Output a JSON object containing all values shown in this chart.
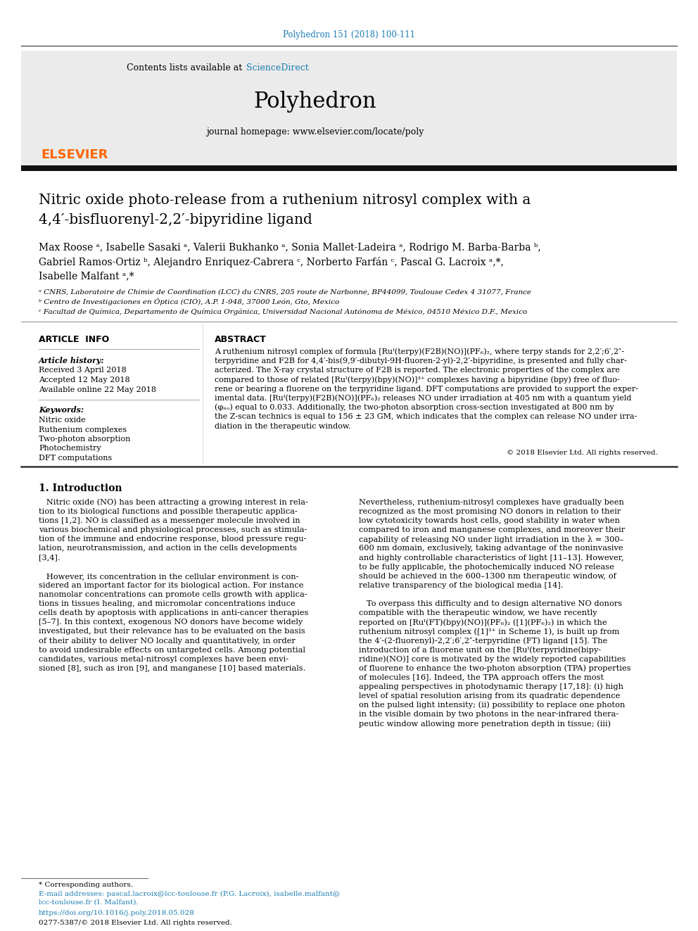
{
  "journal_ref": "Polyhedron 151 (2018) 100-111",
  "journal_ref_color": "#1a7db5",
  "header_bg": "#e8e8e8",
  "science_direct_color": "#1a7db5",
  "journal_name": "Polyhedron",
  "journal_homepage": "journal homepage: www.elsevier.com/locate/poly",
  "elsevier_color": "#ff6600",
  "elsevier_text": "ELSEVIER",
  "title_line1": "Nitric oxide photo-release from a ruthenium nitrosyl complex with a",
  "title_line2": "4,4′-bisfluorenyl-2,2′-bipyridine ligand",
  "authors_line1": "Max Roose ᵃ, Isabelle Sasaki ᵃ, Valerii Bukhanko ᵃ, Sonia Mallet-Ladeira ᵃ, Rodrigo M. Barba-Barba ᵇ,",
  "authors_line2": "Gabriel Ramos-Ortiz ᵇ, Alejandro Enriquez-Cabrera ᶜ, Norberto Farfán ᶜ, Pascal G. Lacroix ᵃ,*,",
  "authors_line3": "Isabelle Malfant ᵃ,*",
  "affil_a": "ᵃ CNRS, Laboratoire de Chimie de Coordination (LCC) du CNRS, 205 route de Narbonne, BP44099, Toulouse Cedex 4 31077, France",
  "affil_b": "ᵇ Centro de Investigaciones en Óptica (CIO), A.P. 1-948, 37000 León, Gto, Mexico",
  "affil_c": "ᶜ Facultad de Química, Departamento de Química Orgánica, Universidad Nacional Autónoma de México, 04510 México D.F., Mexico",
  "section_article_info": "ARTICLE  INFO",
  "section_abstract": "ABSTRACT",
  "article_history_label": "Article history:",
  "received": "Received 3 April 2018",
  "accepted": "Accepted 12 May 2018",
  "available": "Available online 22 May 2018",
  "keywords_label": "Keywords:",
  "keywords": [
    "Nitric oxide",
    "Ruthenium complexes",
    "Two-photon absorption",
    "Photochemistry",
    "DFT computations"
  ],
  "abstract_lines": [
    "A ruthenium nitrosyl complex of formula [Ruᴵ(terpy)(F2B)(NO)](PF₆)₂, where terpy stands for 2,2′;6′,2″-",
    "terpyridine and F2B for 4,4′-bis(9,9′-dibutyl-9H-fluoren-2-yl)-2,2′-bipyridine, is presented and fully char-",
    "acterized. The X-ray crystal structure of F2B is reported. The electronic properties of the complex are",
    "compared to those of related [Ruᴵ(terpy)(bpy)(NO)]³⁺ complexes having a bipyridine (bpy) free of fluo-",
    "rene or bearing a fluorene on the terpyridine ligand. DFT computations are provided to support the exper-",
    "imental data. [Ruᴵ(terpy)(F2B)(NO)](PF₆)₂ releases NO under irradiation at 405 nm with a quantum yield",
    "(φₙₒ) equal to 0.033. Additionally, the two-photon absorption cross-section investigated at 800 nm by",
    "the Z-scan technics is equal to 156 ± 23 GM, which indicates that the complex can release NO under irra-",
    "diation in the therapeutic window."
  ],
  "copyright": "© 2018 Elsevier Ltd. All rights reserved.",
  "intro_heading": "1. Introduction",
  "intro_col1_lines": [
    "   Nitric oxide (NO) has been attracting a growing interest in rela-",
    "tion to its biological functions and possible therapeutic applica-",
    "tions [1,2]. NO is classified as a messenger molecule involved in",
    "various biochemical and physiological processes, such as stimula-",
    "tion of the immune and endocrine response, blood pressure regu-",
    "lation, neurotransmission, and action in the cells developments",
    "[3,4].",
    "",
    "   However, its concentration in the cellular environment is con-",
    "sidered an important factor for its biological action. For instance",
    "nanomolar concentrations can promote cells growth with applica-",
    "tions in tissues healing, and micromolar concentrations induce",
    "cells death by apoptosis with applications in anti-cancer therapies",
    "[5–7]. In this context, exogenous NO donors have become widely",
    "investigated, but their relevance has to be evaluated on the basis",
    "of their ability to deliver NO locally and quantitatively, in order",
    "to avoid undesirable effects on untargeted cells. Among potential",
    "candidates, various metal-nitrosyl complexes have been envi-",
    "sioned [8], such as iron [9], and manganese [10] based materials."
  ],
  "intro_col2_lines": [
    "Nevertheless, ruthenium-nitrosyl complexes have gradually been",
    "recognized as the most promising NO donors in relation to their",
    "low cytotoxicity towards host cells, good stability in water when",
    "compared to iron and manganese complexes, and moreover their",
    "capability of releasing NO under light irradiation in the λ = 300–",
    "600 nm domain, exclusively, taking advantage of the noninvasive",
    "and highly controllable characteristics of light [11–13]. However,",
    "to be fully applicable, the photochemically induced NO release",
    "should be achieved in the 600–1300 nm therapeutic window, of",
    "relative transparency of the biological media [14].",
    "",
    "   To overpass this difficulty and to design alternative NO donors",
    "compatible with the therapeutic window, we have recently",
    "reported on [Ruᴵ(FT)(bpy)(NO)](PF₆)₂ ([1](PF₆)₂) in which the",
    "ruthenium nitrosyl complex ([1]³⁺ in Scheme 1), is built up from",
    "the 4′-(2-fluorenyl)-2,2′;6′,2″-terpyridine (FT) ligand [15]. The",
    "introduction of a fluorene unit on the [Ruᴵ(terpyridine(bipy-",
    "ridine)(NO)] core is motivated by the widely reported capabilities",
    "of fluorene to enhance the two-photon absorption (TPA) properties",
    "of molecules [16]. Indeed, the TPA approach offers the most",
    "appealing perspectives in photodynamic therapy [17,18]: (i) high",
    "level of spatial resolution arising from its quadratic dependence",
    "on the pulsed light intensity; (ii) possibility to replace one photon",
    "in the visible domain by two photons in the near-infrared thera-",
    "peutic window allowing more penetration depth in tissue; (iii)"
  ],
  "footnote_star": "* Corresponding authors.",
  "footnote_email1": "E-mail addresses: pascal.lacroix@lcc-toulouse.fr (P.G. Lacroix), isabelle.malfant@",
  "footnote_email2": "lcc-toulouse.fr (I. Malfant).",
  "doi_text": "https://doi.org/10.1016/j.poly.2018.05.028",
  "issn_text": "0277-5387/© 2018 Elsevier Ltd. All rights reserved.",
  "bg_color": "#ffffff",
  "text_color": "#000000",
  "link_color": "#1a7db5"
}
